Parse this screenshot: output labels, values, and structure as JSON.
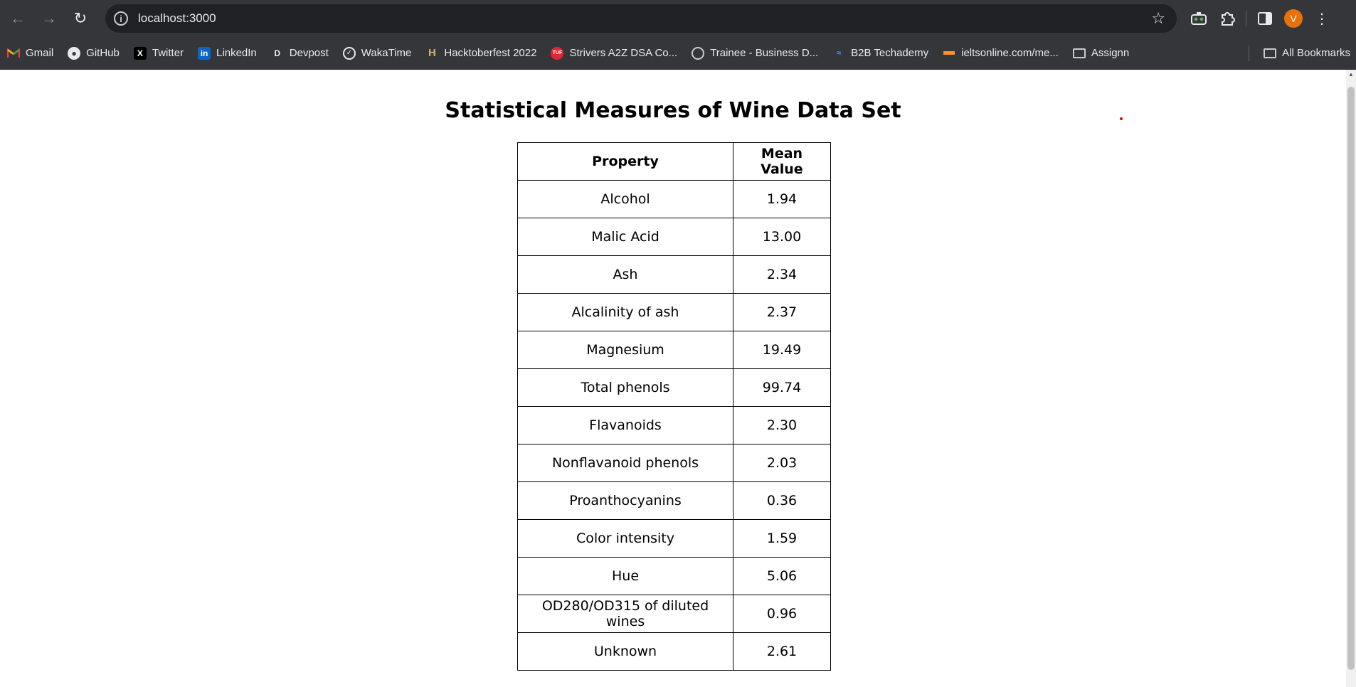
{
  "browser": {
    "url": "localhost:3000",
    "avatar_letter": "V",
    "bookmarks": [
      {
        "label": "Gmail",
        "icon": "gmail-icon"
      },
      {
        "label": "GitHub",
        "icon": "github-icon"
      },
      {
        "label": "Twitter",
        "icon": "x-icon"
      },
      {
        "label": "LinkedIn",
        "icon": "linkedin-icon"
      },
      {
        "label": "Devpost",
        "icon": "devpost-icon"
      },
      {
        "label": "WakaTime",
        "icon": "wakatime-icon"
      },
      {
        "label": "Hacktoberfest 2022",
        "icon": "hacktoberfest-icon"
      },
      {
        "label": "Strivers A2Z DSA Co...",
        "icon": "tuf-icon"
      },
      {
        "label": "Trainee - Business D...",
        "icon": "globe-icon"
      },
      {
        "label": "B2B Techademy",
        "icon": "techademy-icon"
      },
      {
        "label": "ieltsonline.com/me...",
        "icon": "ielts-icon"
      },
      {
        "label": "Assignn",
        "icon": "folder-icon"
      }
    ],
    "all_bookmarks_label": "All Bookmarks"
  },
  "page": {
    "title": "Statistical Measures of Wine Data Set",
    "table": {
      "headers": [
        "Property",
        "Mean Value"
      ],
      "rows": [
        [
          "Alcohol",
          "1.94"
        ],
        [
          "Malic Acid",
          "13.00"
        ],
        [
          "Ash",
          "2.34"
        ],
        [
          "Alcalinity of ash",
          "2.37"
        ],
        [
          "Magnesium",
          "19.49"
        ],
        [
          "Total phenols",
          "99.74"
        ],
        [
          "Flavanoids",
          "2.30"
        ],
        [
          "Nonflavanoid phenols",
          "2.03"
        ],
        [
          "Proanthocyanins",
          "0.36"
        ],
        [
          "Color intensity",
          "1.59"
        ],
        [
          "Hue",
          "5.06"
        ],
        [
          "OD280/OD315 of diluted wines",
          "0.96"
        ],
        [
          "Unknown",
          "2.61"
        ]
      ]
    }
  },
  "colors": {
    "chrome_bg": "#35363a",
    "omnibox_bg": "#202124",
    "avatar_bg": "#e8710a"
  }
}
